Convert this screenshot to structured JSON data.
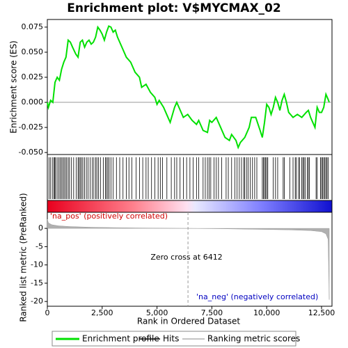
{
  "chart_data": {
    "type": "gsea",
    "title": "Enrichment plot: V$MYCMAX_02",
    "xlabel": "Rank in Ordered Dataset",
    "xlim": [
      0,
      12976
    ],
    "xticks": [
      0,
      {
        "value": 2500,
        "label": "2,500"
      },
      {
        "value": 5000,
        "label": "5,000"
      },
      {
        "value": 7500,
        "label": "7,500"
      },
      {
        "value": 10000,
        "label": "10,000"
      },
      {
        "value": 12500,
        "label": "12,500"
      }
    ],
    "es": {
      "name": "Enrichment profile",
      "ylabel": "Enrichment score (ES)",
      "color": "#00e000",
      "ylim": [
        -0.052,
        0.0826
      ],
      "yticks": [
        {
          "value": -0.05,
          "label": "-0.050"
        },
        -0.025,
        {
          "value": 0,
          "label": "0.000"
        },
        0.025,
        {
          "value": 0.05,
          "label": "0.050"
        },
        0.075
      ],
      "x": [
        0,
        50,
        150,
        250,
        350,
        450,
        550,
        650,
        750,
        850,
        950,
        1050,
        1150,
        1300,
        1400,
        1500,
        1600,
        1700,
        1800,
        1900,
        2000,
        2100,
        2200,
        2300,
        2400,
        2500,
        2600,
        2700,
        2800,
        2900,
        3000,
        3100,
        3200,
        3400,
        3600,
        3800,
        4000,
        4200,
        4300,
        4500,
        4700,
        4900,
        5000,
        5100,
        5300,
        5500,
        5600,
        5800,
        5900,
        6000,
        6200,
        6400,
        6600,
        6800,
        6900,
        7100,
        7300,
        7400,
        7500,
        7700,
        7900,
        8100,
        8300,
        8400,
        8600,
        8700,
        8800,
        9000,
        9200,
        9300,
        9500,
        9700,
        9800,
        9900,
        10000,
        10100,
        10200,
        10300,
        10400,
        10500,
        10600,
        10700,
        10800,
        10900,
        11000,
        11200,
        11400,
        11600,
        11800,
        11900,
        12000,
        12200,
        12300,
        12400,
        12500,
        12600,
        12700,
        12800,
        12850
      ],
      "values": [
        0,
        -0.005,
        0.002,
        0.0,
        0.02,
        0.025,
        0.022,
        0.033,
        0.04,
        0.045,
        0.062,
        0.06,
        0.055,
        0.048,
        0.045,
        0.06,
        0.062,
        0.055,
        0.06,
        0.062,
        0.058,
        0.06,
        0.065,
        0.075,
        0.072,
        0.068,
        0.062,
        0.07,
        0.076,
        0.075,
        0.07,
        0.072,
        0.065,
        0.055,
        0.045,
        0.04,
        0.03,
        0.025,
        0.015,
        0.018,
        0.01,
        0.005,
        -0.002,
        0.002,
        -0.005,
        -0.015,
        -0.02,
        -0.005,
        0.0,
        -0.005,
        -0.015,
        -0.012,
        -0.018,
        -0.022,
        -0.018,
        -0.028,
        -0.03,
        -0.018,
        -0.02,
        -0.015,
        -0.025,
        -0.035,
        -0.038,
        -0.032,
        -0.038,
        -0.045,
        -0.04,
        -0.035,
        -0.025,
        -0.015,
        -0.015,
        -0.028,
        -0.035,
        -0.02,
        -0.002,
        -0.005,
        -0.012,
        -0.005,
        0.005,
        0.0,
        -0.008,
        0.002,
        0.008,
        0.0,
        -0.01,
        -0.015,
        -0.012,
        -0.015,
        -0.01,
        -0.008,
        -0.015,
        -0.025,
        -0.005,
        -0.01,
        -0.01,
        -0.005,
        0.008,
        0.003,
        0.0
      ]
    },
    "hits": {
      "name": "Hits",
      "color": "#000000",
      "x": [
        80,
        150,
        230,
        300,
        340,
        380,
        450,
        520,
        580,
        640,
        700,
        760,
        820,
        880,
        950,
        1010,
        1100,
        1200,
        1320,
        1400,
        1450,
        1500,
        1560,
        1620,
        1700,
        1780,
        1860,
        1950,
        2050,
        2120,
        2200,
        2260,
        2330,
        2420,
        2550,
        2650,
        2700,
        2760,
        2820,
        2900,
        3000,
        3150,
        3300,
        3450,
        3600,
        3720,
        3850,
        4050,
        4200,
        4350,
        4500,
        4600,
        4750,
        4900,
        5050,
        5150,
        5250,
        5450,
        5650,
        5800,
        5900,
        6050,
        6200,
        6350,
        6500,
        6650,
        6800,
        6900,
        7100,
        7200,
        7300,
        7380,
        7450,
        7600,
        7700,
        7800,
        7950,
        8150,
        8250,
        8400,
        8550,
        8650,
        8750,
        8850,
        8950,
        9000,
        9080,
        9150,
        9250,
        9350,
        9450,
        9550,
        9800,
        9850,
        9900,
        9950,
        10000,
        10050,
        10300,
        10400,
        10500,
        10750,
        10800,
        11050,
        11200,
        11300,
        11350,
        11450,
        11500,
        11600,
        11650,
        11700,
        11750,
        11850,
        11900,
        11950,
        12250,
        12300,
        12450,
        12500,
        12550,
        12600,
        12650,
        12700,
        12750,
        12800
      ]
    },
    "metric": {
      "name": "Ranking metric scores",
      "ylabel": "Ranked list metric (PreRanked)",
      "color": "#b0b0b0",
      "ylim": [
        -21.3,
        4.4
      ],
      "yticks": [
        -20,
        -15,
        -10,
        -5,
        0
      ],
      "x": [
        0,
        50,
        200,
        500,
        1000,
        2000,
        3000,
        4000,
        5000,
        6412,
        8000,
        10000,
        11000,
        12000,
        12500,
        12700,
        12800,
        12850
      ],
      "values": [
        2.5,
        1.5,
        1.0,
        0.7,
        0.5,
        0.3,
        0.2,
        0.12,
        0.06,
        0,
        -0.1,
        -0.3,
        -0.4,
        -0.6,
        -0.9,
        -1.5,
        -3,
        -19.5
      ]
    },
    "zero_cross": 6412,
    "annotations": {
      "pos": "'na_pos' (positively correlated)",
      "neg": "'na_neg' (negatively correlated)",
      "zero": "Zero cross at 6412"
    }
  }
}
